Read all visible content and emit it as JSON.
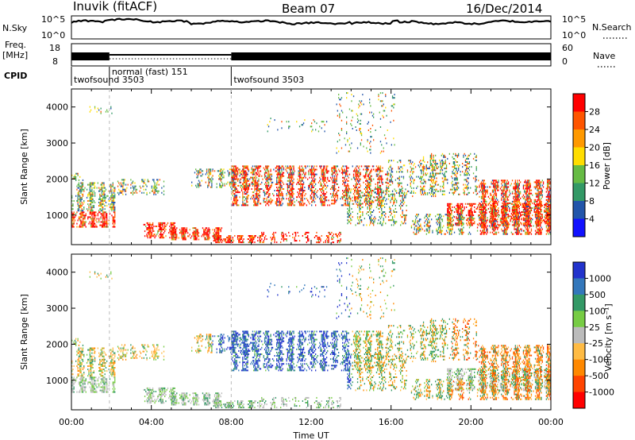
{
  "header": {
    "station": "Inuvik (fitACF)",
    "beam": "Beam 07",
    "date": "16/Dec/2014"
  },
  "top_panels": {
    "nsky_label": "N.Sky",
    "nsky_ticks": [
      "10^5",
      "10^0"
    ],
    "nsearch_label": "N.Search",
    "freq_label": "Freq.",
    "freq_unit": "[MHz]",
    "freq_ticks": [
      "18",
      "8"
    ],
    "nave_label": "Nave",
    "nave_ticks": [
      "60",
      "0"
    ],
    "cpid_label": "CPID",
    "cpid_segments": [
      {
        "label": "twofsound 3503",
        "start_hour": 0.0
      },
      {
        "label": "normal (fast) 151",
        "start_hour": 1.9
      },
      {
        "label": "twofsound 3503",
        "start_hour": 8.0
      }
    ]
  },
  "x_axis": {
    "label": "Time UT",
    "ticks": [
      "00:00",
      "04:00",
      "08:00",
      "12:00",
      "16:00",
      "20:00",
      "00:00"
    ]
  },
  "chart_data": [
    {
      "type": "heatmap",
      "panel": "power",
      "x_range_hours": [
        0,
        24
      ],
      "ylabel": "Slant Range [km]",
      "ylim": [
        180,
        4500
      ],
      "yticks": [
        "1000",
        "2000",
        "3000",
        "4000"
      ],
      "colorbar": {
        "label": "Power [dB]",
        "ticks": [
          "28",
          "24",
          "20",
          "16",
          "12",
          "8",
          "4"
        ],
        "colors": [
          "#ff0000",
          "#ff5500",
          "#ff9900",
          "#ffdd00",
          "#66bb44",
          "#339966",
          "#2255aa",
          "#1111ff"
        ]
      }
    },
    {
      "type": "heatmap",
      "panel": "velocity",
      "x_range_hours": [
        0,
        24
      ],
      "ylabel": "Slant Range [km]",
      "ylim": [
        180,
        4500
      ],
      "yticks": [
        "1000",
        "2000",
        "3000",
        "4000"
      ],
      "colorbar": {
        "label": "Velocity [m s⁻¹]",
        "ticks": [
          "1000",
          "500",
          "100",
          "25",
          "-25",
          "-100",
          "-500",
          "-1000"
        ],
        "colors": [
          "#2233cc",
          "#3377bb",
          "#339966",
          "#77cc44",
          "#bbbbbb",
          "#ffbb44",
          "#ff8800",
          "#ff4400",
          "#ff0000"
        ]
      }
    }
  ]
}
